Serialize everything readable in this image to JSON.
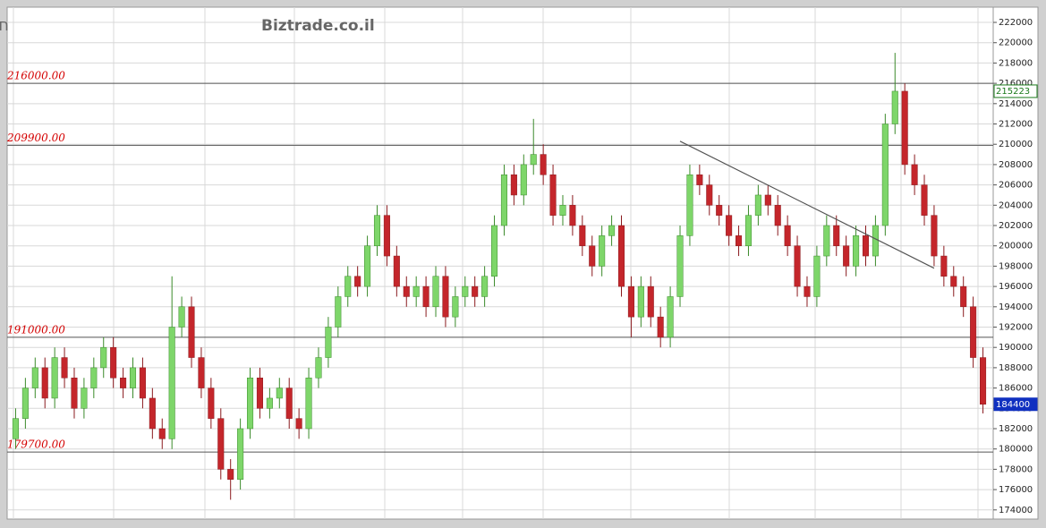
{
  "chart_data": {
    "type": "candlestick",
    "title": "חברה לישראל",
    "subtitle": "Biztrade.co.il",
    "ylim": [
      173100,
      223500
    ],
    "yticks": [
      174000,
      176000,
      178000,
      180000,
      182000,
      184000,
      186000,
      188000,
      190000,
      192000,
      194000,
      196000,
      198000,
      200000,
      202000,
      204000,
      206000,
      208000,
      210000,
      212000,
      214000,
      216000,
      218000,
      220000,
      222000
    ],
    "grid": true,
    "up_color": "#7ed66a",
    "down_color": "#c4262b",
    "open": [
      181000,
      183000,
      186000,
      188000,
      185000,
      189000,
      187000,
      184000,
      186000,
      188000,
      190000,
      187000,
      186000,
      188000,
      185000,
      182000,
      181000,
      192000,
      194000,
      189000,
      186000,
      183000,
      178000,
      177000,
      182000,
      187000,
      184000,
      185000,
      186000,
      183000,
      182000,
      187000,
      189000,
      192000,
      195000,
      197000,
      196000,
      200000,
      203000,
      199000,
      196000,
      195000,
      196000,
      194000,
      197000,
      193000,
      195000,
      196000,
      195000,
      197000,
      202000,
      207000,
      205000,
      208000,
      209000,
      207000,
      203000,
      204000,
      202000,
      200000,
      198000,
      201000,
      202000,
      196000,
      193000,
      196000,
      193000,
      191000,
      195000,
      201000,
      207000,
      206000,
      204000,
      203000,
      201000,
      200000,
      203000,
      205000,
      204000,
      202000,
      200000,
      196000,
      195000,
      199000,
      202000,
      200000,
      198000,
      201000,
      199000,
      202000,
      212000,
      215223,
      208000,
      206000,
      203000,
      199000,
      197000,
      196000,
      194000,
      189000
    ],
    "high": [
      184000,
      187000,
      189000,
      189000,
      190000,
      190000,
      188000,
      187000,
      189000,
      191000,
      191000,
      188000,
      189000,
      189000,
      186000,
      183000,
      197000,
      195000,
      195000,
      190000,
      187000,
      184000,
      179000,
      183000,
      188000,
      188000,
      186000,
      187000,
      187000,
      184000,
      188000,
      190000,
      193000,
      196000,
      198000,
      198000,
      201000,
      204000,
      204000,
      200000,
      197000,
      197000,
      197000,
      198000,
      198000,
      196000,
      197000,
      197000,
      198000,
      203000,
      208000,
      208000,
      209000,
      212500,
      210000,
      208000,
      205000,
      205000,
      203000,
      201000,
      202000,
      203000,
      203000,
      197000,
      197000,
      197000,
      194000,
      196000,
      202000,
      208000,
      208000,
      207000,
      205000,
      204000,
      202000,
      204000,
      206000,
      206000,
      205000,
      203000,
      201000,
      197000,
      200000,
      203000,
      203000,
      201000,
      202000,
      202000,
      203000,
      213000,
      219000,
      216000,
      209000,
      207000,
      204000,
      200000,
      198000,
      197000,
      195000,
      190000
    ],
    "low": [
      180000,
      182000,
      185000,
      184000,
      184000,
      186000,
      183000,
      183000,
      185000,
      187000,
      186000,
      185000,
      185000,
      184000,
      181000,
      180000,
      180000,
      191000,
      188000,
      185000,
      182000,
      177000,
      175000,
      176000,
      181000,
      183000,
      183000,
      184000,
      182000,
      181000,
      181000,
      186000,
      188000,
      191000,
      194000,
      195000,
      195000,
      199000,
      198000,
      195000,
      194000,
      194000,
      193000,
      193000,
      192000,
      192000,
      194000,
      194000,
      194000,
      196000,
      201000,
      204000,
      204000,
      207000,
      206000,
      202000,
      202000,
      201000,
      199000,
      197000,
      197000,
      200000,
      195000,
      191000,
      192000,
      192000,
      190000,
      190000,
      194000,
      200000,
      205000,
      203000,
      202000,
      200000,
      199000,
      199000,
      202000,
      203000,
      201000,
      199000,
      195000,
      194000,
      194000,
      198000,
      199000,
      197000,
      197000,
      198000,
      198000,
      201000,
      211000,
      207000,
      205000,
      202000,
      198000,
      196000,
      195000,
      193000,
      188000,
      183500
    ],
    "close": [
      183000,
      186000,
      188000,
      185000,
      189000,
      187000,
      184000,
      186000,
      188000,
      190000,
      187000,
      186000,
      188000,
      185000,
      182000,
      181000,
      192000,
      194000,
      189000,
      186000,
      183000,
      178000,
      177000,
      182000,
      187000,
      184000,
      185000,
      186000,
      183000,
      182000,
      187000,
      189000,
      192000,
      195000,
      197000,
      196000,
      200000,
      203000,
      199000,
      196000,
      195000,
      196000,
      194000,
      197000,
      193000,
      195000,
      196000,
      195000,
      197000,
      202000,
      207000,
      205000,
      208000,
      209000,
      207000,
      203000,
      204000,
      202000,
      200000,
      198000,
      201000,
      202000,
      196000,
      193000,
      196000,
      193000,
      191000,
      195000,
      201000,
      207000,
      206000,
      204000,
      203000,
      201000,
      200000,
      203000,
      205000,
      204000,
      202000,
      200000,
      196000,
      195000,
      199000,
      202000,
      200000,
      198000,
      201000,
      199000,
      202000,
      212000,
      215223,
      208000,
      206000,
      203000,
      199000,
      197000,
      196000,
      194000,
      189000,
      184400
    ],
    "levels": [
      {
        "value": 216000,
        "label": "216000.00"
      },
      {
        "value": 209900,
        "label": "209900.00"
      },
      {
        "value": 191000,
        "label": "191000.00"
      },
      {
        "value": 179700,
        "label": "179700.00"
      }
    ],
    "trendline": {
      "x": [
        68,
        94
      ],
      "y": [
        210300,
        197800
      ]
    },
    "markers": [
      215223,
      184400
    ]
  }
}
